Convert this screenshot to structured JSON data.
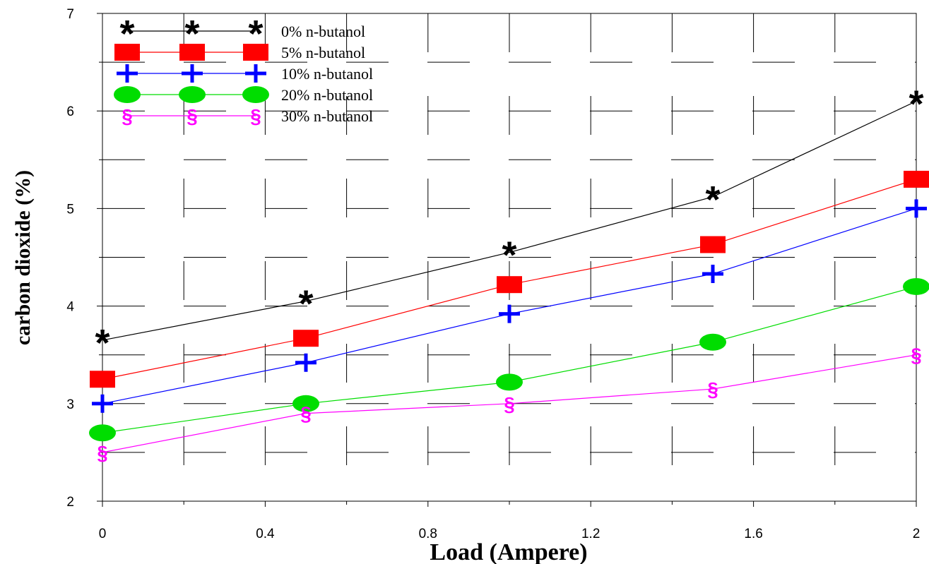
{
  "chart_data": {
    "type": "line",
    "xlabel": "Load (Ampere)",
    "ylabel": "carbon dioxide (%)",
    "xlim": [
      0,
      2
    ],
    "ylim": [
      2,
      7
    ],
    "xticks": [
      "0",
      "0.4",
      "0.8",
      "1.2",
      "1.6",
      "2"
    ],
    "yticks": [
      "2",
      "3",
      "4",
      "5",
      "6",
      "7"
    ],
    "grid": "dashed",
    "legend_position": "top-left",
    "series": [
      {
        "name": "0% n-butanol",
        "marker": "asterisk",
        "color": "#000000",
        "x": [
          0,
          0.5,
          1.0,
          1.5,
          2.0
        ],
        "y": [
          3.65,
          4.05,
          4.55,
          5.12,
          6.1
        ]
      },
      {
        "name": "5% n-butanol",
        "marker": "square",
        "color": "#ff0000",
        "x": [
          0,
          0.5,
          1.0,
          1.5,
          2.0
        ],
        "y": [
          3.25,
          3.67,
          4.22,
          4.63,
          5.3
        ]
      },
      {
        "name": "10% n-butanol",
        "marker": "plus",
        "color": "#0000ff",
        "x": [
          0,
          0.5,
          1.0,
          1.5,
          2.0
        ],
        "y": [
          3.0,
          3.42,
          3.92,
          4.33,
          5.0
        ]
      },
      {
        "name": "20% n-butanol",
        "marker": "ellipse",
        "color": "#00dd00",
        "x": [
          0,
          0.5,
          1.0,
          1.5,
          2.0
        ],
        "y": [
          2.7,
          3.0,
          3.22,
          3.63,
          4.2
        ]
      },
      {
        "name": "30% n-butanol",
        "marker": "section",
        "color": "#ff00ff",
        "x": [
          0,
          0.5,
          1.0,
          1.5,
          2.0
        ],
        "y": [
          2.5,
          2.9,
          3.0,
          3.15,
          3.5
        ]
      }
    ]
  }
}
